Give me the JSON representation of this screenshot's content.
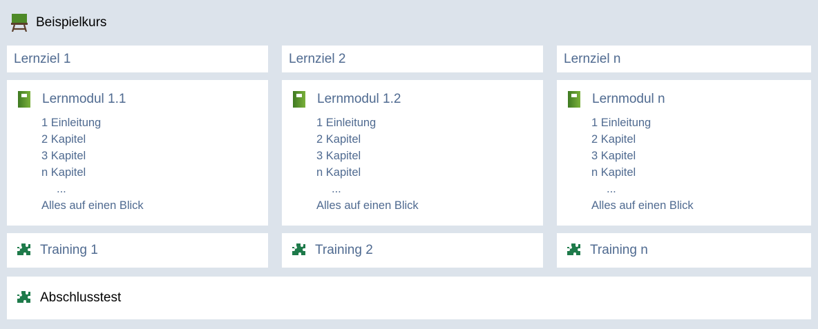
{
  "course": {
    "title": "Beispielkurs",
    "icon": "classroom-board-icon"
  },
  "columns": [
    {
      "goal": "Lernziel 1",
      "module": "Lernmodul 1.1",
      "items": [
        "1 Einleitung",
        "2 Kapitel",
        "3 Kapitel",
        "n Kapitel",
        "...",
        "Alles auf einen Blick"
      ],
      "training": "Training 1"
    },
    {
      "goal": "Lernziel 2",
      "module": "Lernmodul 1.2",
      "items": [
        "1 Einleitung",
        "2 Kapitel",
        "3 Kapitel",
        "n Kapitel",
        "...",
        "Alles auf einen Blick"
      ],
      "training": "Training 2"
    },
    {
      "goal": "Lernziel n",
      "module": "Lernmodul n",
      "items": [
        "1 Einleitung",
        "2 Kapitel",
        "3 Kapitel",
        "n Kapitel",
        "...",
        "Alles auf einen Blick"
      ],
      "training": "Training n"
    }
  ],
  "final_test": "Abschlusstest",
  "colors": {
    "background": "#dce3eb",
    "text": "#4f6a90",
    "book": "#5e9a2c",
    "puzzle": "#1e7a4a"
  }
}
